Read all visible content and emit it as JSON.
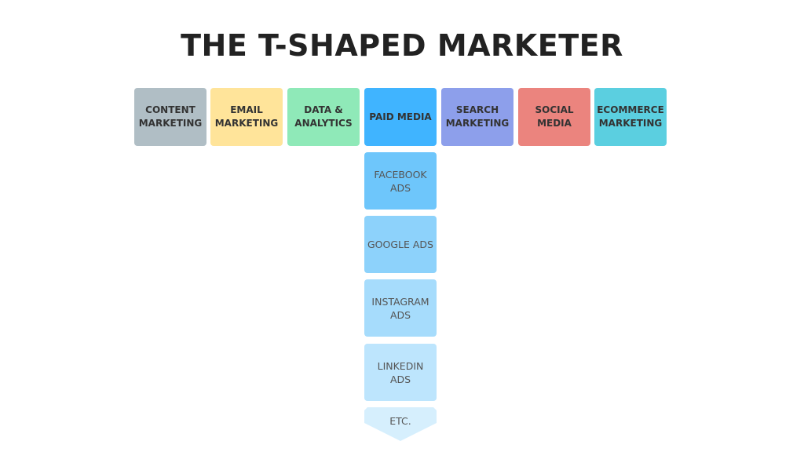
{
  "title": "THE T-SHAPED MARKETER",
  "skills": [
    {
      "label": "CONTENT MARKETING",
      "color": "#b0bec5"
    },
    {
      "label": "EMAIL MARKETING",
      "color": "#ffe49a"
    },
    {
      "label": "DATA & ANALYTICS",
      "color": "#8fe9b8"
    },
    {
      "label": "PAID MEDIA",
      "color": "#40b4ff"
    },
    {
      "label": "SEARCH MARKETING",
      "color": "#8d9feb"
    },
    {
      "label": "SOCIAL MEDIA",
      "color": "#eb847e"
    },
    {
      "label": "ECOMMERCE MARKETING",
      "color": "#5bcfe0"
    }
  ],
  "paid_media_subskills": [
    {
      "label": "FACEBOOK ADS",
      "color": "#6ec6fb"
    },
    {
      "label": "GOOGLE ADS",
      "color": "#8dd2fb"
    },
    {
      "label": "INSTAGRAM ADS",
      "color": "#a6dcfc"
    },
    {
      "label": "LINKEDIN ADS",
      "color": "#bde5fd"
    }
  ],
  "more": {
    "label": "ETC.",
    "color": "#d6effd"
  }
}
